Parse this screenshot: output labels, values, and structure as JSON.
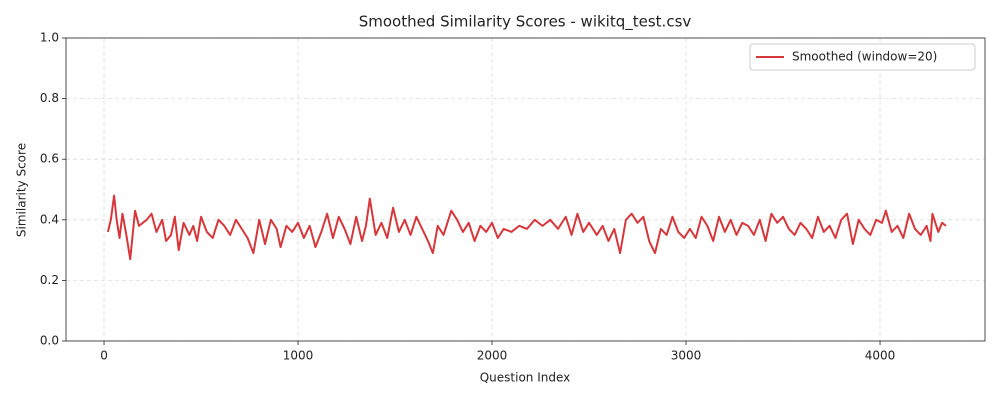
{
  "chart_data": {
    "type": "line",
    "title": "Smoothed Similarity Scores - wikitq_test.csv",
    "x_label": "Question Index",
    "y_label": "Similarity Score",
    "x": [
      20,
      35,
      52,
      65,
      80,
      95,
      115,
      135,
      160,
      180,
      220,
      245,
      270,
      300,
      320,
      345,
      365,
      385,
      410,
      440,
      460,
      480,
      500,
      530,
      560,
      590,
      620,
      650,
      680,
      710,
      740,
      770,
      800,
      830,
      860,
      890,
      910,
      940,
      970,
      1000,
      1030,
      1060,
      1090,
      1120,
      1150,
      1180,
      1210,
      1240,
      1270,
      1300,
      1330,
      1350,
      1370,
      1400,
      1430,
      1460,
      1490,
      1520,
      1550,
      1580,
      1610,
      1640,
      1670,
      1695,
      1720,
      1750,
      1790,
      1820,
      1850,
      1880,
      1910,
      1940,
      1970,
      2000,
      2030,
      2060,
      2100,
      2140,
      2180,
      2220,
      2260,
      2300,
      2340,
      2380,
      2410,
      2440,
      2470,
      2500,
      2540,
      2570,
      2600,
      2630,
      2660,
      2690,
      2720,
      2750,
      2780,
      2810,
      2840,
      2870,
      2900,
      2930,
      2960,
      2990,
      3020,
      3050,
      3080,
      3110,
      3140,
      3170,
      3200,
      3230,
      3260,
      3290,
      3320,
      3350,
      3380,
      3410,
      3440,
      3470,
      3500,
      3530,
      3560,
      3590,
      3620,
      3650,
      3680,
      3710,
      3740,
      3770,
      3800,
      3830,
      3860,
      3890,
      3920,
      3950,
      3980,
      4010,
      4030,
      4060,
      4090,
      4120,
      4150,
      4180,
      4210,
      4240,
      4260,
      4270,
      4300,
      4320,
      4340
    ],
    "series": [
      {
        "name": "Smoothed (window=20)",
        "color": "#d7373b",
        "values": [
          0.36,
          0.4,
          0.48,
          0.4,
          0.34,
          0.42,
          0.35,
          0.27,
          0.43,
          0.38,
          0.4,
          0.42,
          0.36,
          0.4,
          0.33,
          0.35,
          0.41,
          0.3,
          0.39,
          0.35,
          0.38,
          0.33,
          0.41,
          0.36,
          0.34,
          0.4,
          0.38,
          0.35,
          0.4,
          0.37,
          0.34,
          0.29,
          0.4,
          0.32,
          0.4,
          0.37,
          0.31,
          0.38,
          0.36,
          0.39,
          0.34,
          0.38,
          0.31,
          0.36,
          0.42,
          0.34,
          0.41,
          0.37,
          0.32,
          0.41,
          0.33,
          0.38,
          0.47,
          0.35,
          0.39,
          0.34,
          0.44,
          0.36,
          0.4,
          0.35,
          0.41,
          0.37,
          0.33,
          0.29,
          0.38,
          0.35,
          0.43,
          0.4,
          0.36,
          0.39,
          0.33,
          0.38,
          0.36,
          0.39,
          0.34,
          0.37,
          0.36,
          0.38,
          0.37,
          0.4,
          0.38,
          0.4,
          0.37,
          0.41,
          0.35,
          0.42,
          0.36,
          0.39,
          0.35,
          0.38,
          0.33,
          0.37,
          0.29,
          0.4,
          0.42,
          0.39,
          0.41,
          0.33,
          0.29,
          0.37,
          0.35,
          0.41,
          0.36,
          0.34,
          0.37,
          0.34,
          0.41,
          0.38,
          0.33,
          0.41,
          0.36,
          0.4,
          0.35,
          0.39,
          0.38,
          0.35,
          0.4,
          0.33,
          0.42,
          0.39,
          0.41,
          0.37,
          0.35,
          0.39,
          0.37,
          0.34,
          0.41,
          0.36,
          0.38,
          0.34,
          0.4,
          0.42,
          0.32,
          0.4,
          0.37,
          0.35,
          0.4,
          0.39,
          0.43,
          0.36,
          0.38,
          0.34,
          0.42,
          0.37,
          0.35,
          0.38,
          0.33,
          0.42,
          0.36,
          0.39,
          0.38
        ]
      }
    ],
    "xlim": [
      -196,
      4541
    ],
    "ylim": [
      0,
      1
    ],
    "xticks": [
      0,
      1000,
      2000,
      3000,
      4000
    ],
    "yticks": [
      {
        "value": 0,
        "label": "0.0"
      },
      {
        "value": 0.2,
        "label": "0.2"
      },
      {
        "value": 0.4,
        "label": "0.4"
      },
      {
        "value": 0.6,
        "label": "0.6"
      },
      {
        "value": 0.8,
        "label": "0.8"
      },
      {
        "value": 1,
        "label": "1.0"
      }
    ],
    "grid": true,
    "legend": "upper-right"
  }
}
